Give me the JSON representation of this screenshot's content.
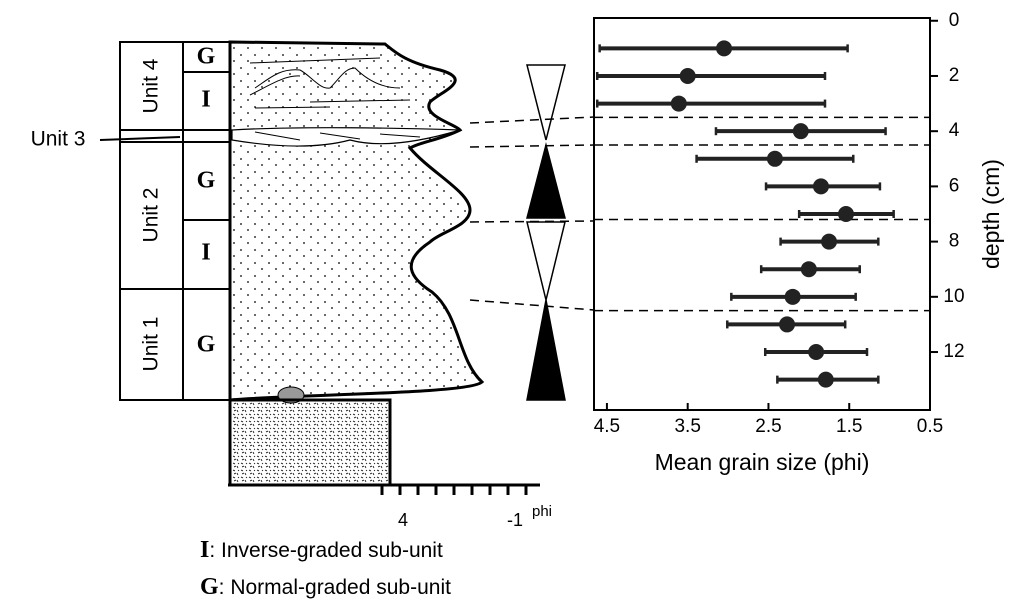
{
  "chart_data": {
    "type": "errorbar",
    "xlabel": "Mean grain size (phi)",
    "ylabel": "depth (cm)",
    "xlim": [
      4.66,
      0.5
    ],
    "xticks": [
      4.5,
      3.5,
      2.5,
      1.5,
      0.5
    ],
    "ylim": [
      14.1,
      -0.1
    ],
    "yticks": [
      0,
      2,
      4,
      6,
      8,
      10,
      12
    ],
    "grid": false,
    "boundaries": [
      3.5,
      4.5,
      7.2,
      10.5
    ],
    "series": [
      {
        "color": "#222222",
        "y": [
          1,
          2,
          3,
          4,
          5,
          6,
          7,
          8,
          9,
          10,
          11,
          12,
          13
        ],
        "x": [
          3.05,
          3.5,
          3.61,
          2.1,
          2.42,
          1.85,
          1.54,
          1.75,
          2.0,
          2.2,
          2.27,
          1.91,
          1.79
        ],
        "x_low": [
          4.59,
          4.62,
          4.62,
          3.15,
          3.39,
          2.53,
          2.12,
          2.35,
          2.59,
          2.96,
          3.01,
          2.54,
          2.39
        ],
        "x_high": [
          1.52,
          1.8,
          1.8,
          1.05,
          1.45,
          1.12,
          0.95,
          1.14,
          1.37,
          1.42,
          1.55,
          1.28,
          1.14
        ]
      }
    ]
  },
  "column": {
    "units": [
      "Unit 4",
      "Unit 3",
      "Unit 2",
      "Unit 1"
    ],
    "subunits": [
      "G",
      "I",
      "G",
      "I",
      "G"
    ],
    "scale_labels": [
      "4",
      "-1",
      "phi"
    ]
  },
  "legend": [
    {
      "symbol": "I",
      "text": ": Inverse-graded sub-unit"
    },
    {
      "symbol": "G",
      "text": ": Normal-graded sub-unit"
    }
  ]
}
